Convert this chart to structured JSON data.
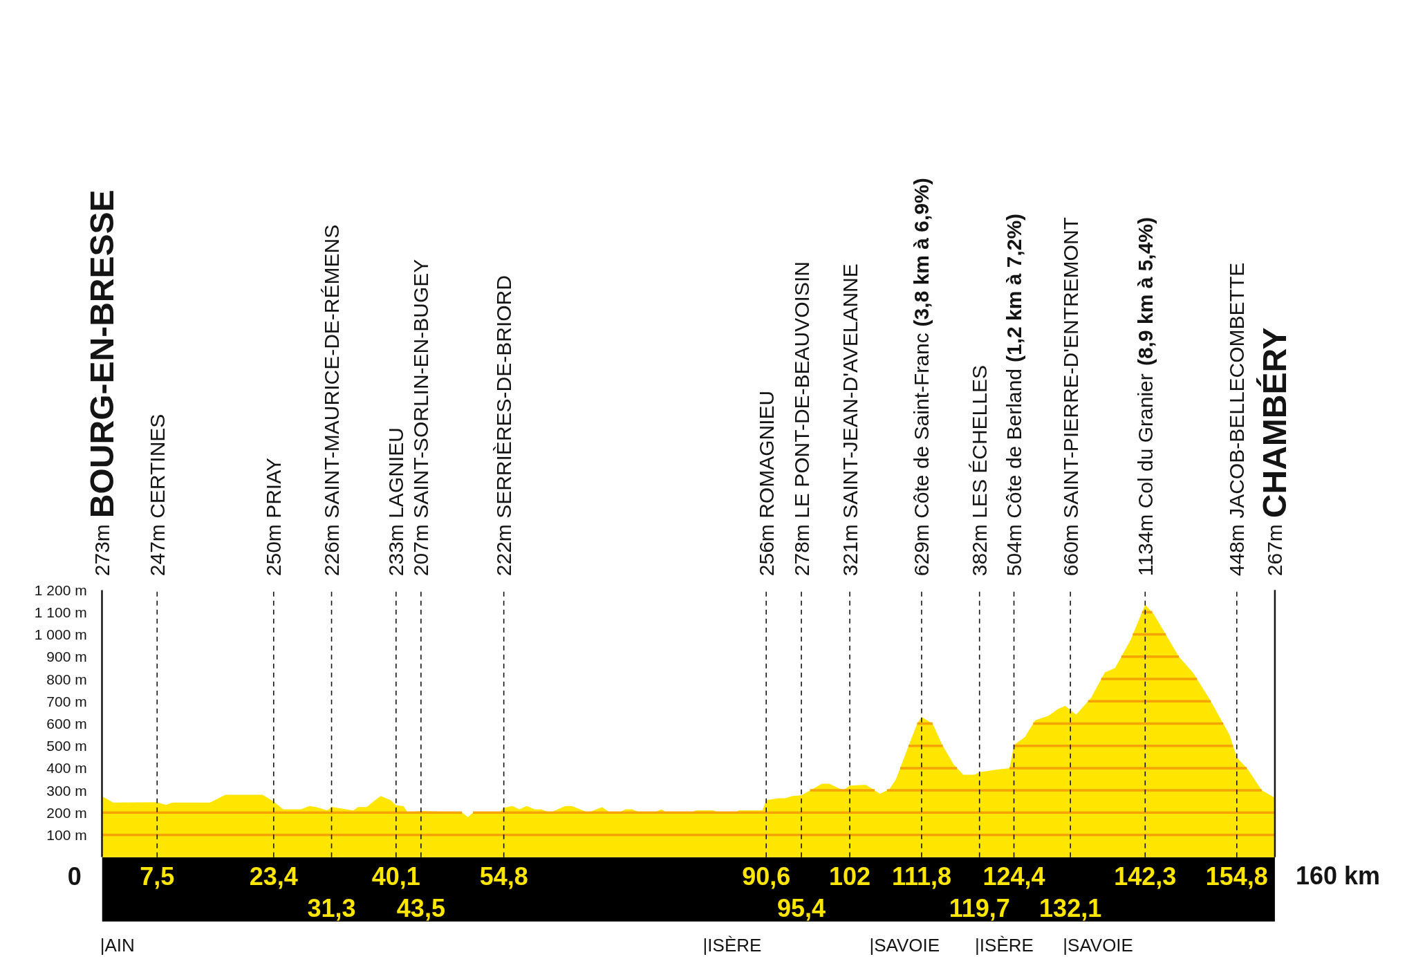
{
  "chart_data": {
    "type": "area",
    "color": "#ffe600",
    "x": [
      0,
      1.5,
      7.5,
      8.7,
      9.6,
      14.7,
      16.8,
      21.9,
      23.4,
      24.7,
      27.1,
      28.3,
      29.2,
      30.7,
      31.3,
      34.3,
      34.9,
      36.1,
      37,
      38,
      39.4,
      40.1,
      41.1,
      41.7,
      43.5,
      49.1,
      49.9,
      50.6,
      54.2,
      54.8,
      56,
      56.9,
      57.9,
      59,
      59.9,
      61.1,
      63.2,
      64.1,
      66.3,
      68.2,
      69.3,
      70.5,
      71.4,
      72.3,
      73.4,
      75.3,
      76.3,
      77.1,
      80.4,
      81,
      83.4,
      84.1,
      86.3,
      86.9,
      90.1,
      90.6,
      92.3,
      93.2,
      94.2,
      95.4,
      98.2,
      99.2,
      101.1,
      102,
      104.2,
      106.1,
      107.4,
      108.3,
      110.2,
      111.2,
      111.8,
      113.3,
      114.6,
      116.2,
      117.5,
      119,
      119.7,
      122.5,
      123.8,
      124.4,
      125.9,
      127.3,
      129.1,
      130.4,
      131.4,
      132.1,
      132.9,
      134.9,
      136.8,
      138.2,
      140.3,
      142.3,
      143.4,
      144.4,
      146.9,
      148.8,
      151,
      153.8,
      154.8,
      156.3,
      158.2,
      160
    ],
    "values": [
      273,
      245,
      247,
      235,
      245,
      245,
      280,
      280,
      250,
      215,
      215,
      230,
      225,
      210,
      226,
      210,
      225,
      225,
      250,
      275,
      255,
      233,
      230,
      200,
      207,
      200,
      180,
      200,
      200,
      222,
      230,
      215,
      230,
      215,
      215,
      200,
      230,
      230,
      200,
      225,
      200,
      200,
      215,
      215,
      200,
      200,
      215,
      200,
      200,
      210,
      210,
      200,
      200,
      210,
      210,
      256,
      265,
      265,
      275,
      278,
      330,
      330,
      300,
      321,
      325,
      285,
      305,
      350,
      515,
      600,
      629,
      600,
      505,
      415,
      370,
      370,
      382,
      395,
      400,
      504,
      540,
      615,
      635,
      665,
      680,
      660,
      640,
      715,
      830,
      850,
      975,
      1134,
      1095,
      1040,
      900,
      830,
      715,
      550,
      448,
      395,
      300,
      267
    ],
    "xlim": [
      0,
      160
    ],
    "xticks": [
      {
        "value": 7.5,
        "label": "7,5"
      },
      {
        "value": 23.4,
        "label": "23,4"
      },
      {
        "value": 40.1,
        "label": "40,1"
      },
      {
        "value": 54.8,
        "label": "54,8"
      },
      {
        "value": 90.6,
        "label": "90,6"
      },
      102,
      {
        "value": 111.8,
        "label": "111,8"
      },
      {
        "value": 124.4,
        "label": "124,4"
      },
      {
        "value": 142.3,
        "label": "142,3"
      },
      {
        "value": 154.8,
        "label": "154,8"
      }
    ],
    "x2lim": [
      0,
      160
    ],
    "x2ticks": [
      {
        "value": 31.3,
        "label": "31,3"
      },
      {
        "value": 43.5,
        "label": "43,5"
      },
      {
        "value": 95.4,
        "label": "95,4"
      },
      {
        "value": 119.7,
        "label": "119,7"
      },
      {
        "value": 132.1,
        "label": "132,1"
      }
    ],
    "ylim": [
      0,
      1200
    ],
    "yticks": [
      {
        "value": 100,
        "label": "100 m"
      },
      {
        "value": 200,
        "label": "200 m"
      },
      {
        "value": 300,
        "label": "300 m"
      },
      {
        "value": 400,
        "label": "400 m"
      },
      {
        "value": 500,
        "label": "500 m"
      },
      {
        "value": 600,
        "label": "600 m"
      },
      {
        "value": 700,
        "label": "700 m"
      },
      {
        "value": 800,
        "label": "800 m"
      },
      {
        "value": 900,
        "label": "900 m"
      },
      {
        "value": 1000,
        "label": "1 000 m"
      },
      {
        "value": 1100,
        "label": "1 100 m"
      },
      {
        "value": 1200,
        "label": "1 200 m"
      }
    ],
    "grid": "y",
    "ref_lines": [
      {
        "axis": "x",
        "value": 7.5,
        "label": "247m CERTINES",
        "line_style": "dashed"
      },
      {
        "axis": "x",
        "value": 23.4,
        "label": "250m PRIAY",
        "line_style": "dashed"
      },
      {
        "axis": "x",
        "value": 31.3,
        "label": "226m SAINT-MAURICE-DE-RÉMENS",
        "line_style": "dashed"
      },
      {
        "axis": "x",
        "value": 40.1,
        "label": "233m LAGNIEU",
        "line_style": "dashed"
      },
      {
        "axis": "x",
        "value": 43.5,
        "label": "207m SAINT-SORLIN-EN-BUGEY",
        "line_style": "dashed"
      },
      {
        "axis": "x",
        "value": 54.8,
        "label": "222m SERRIÈRES-DE-BRIORD",
        "line_style": "dashed"
      },
      {
        "axis": "x",
        "value": 90.6,
        "label": "256m ROMAGNIEU",
        "line_style": "dashed"
      },
      {
        "axis": "x",
        "value": 95.4,
        "label": "278m LE PONT-DE-BEAUVOISIN",
        "line_style": "dashed"
      },
      {
        "axis": "x",
        "value": 102,
        "label": "321m SAINT-JEAN-D'AVELANNE",
        "line_style": "dashed"
      },
      {
        "axis": "x",
        "value": 111.8,
        "label": "629m Côte de Saint-Franc (3,8 km à 6,9%)",
        "line_style": "dashed"
      },
      {
        "axis": "x",
        "value": 119.7,
        "label": "382m LES ÉCHELLES",
        "line_style": "dashed"
      },
      {
        "axis": "x",
        "value": 124.4,
        "label": "504m Côte de Berland (1,2 km à 7,2%)",
        "line_style": "dashed"
      },
      {
        "axis": "x",
        "value": 132.1,
        "label": "660m SAINT-PIERRE-D'ENTREMONT",
        "line_style": "dashed"
      },
      {
        "axis": "x",
        "value": 142.3,
        "label": "1134m Col du Granier (8,9 km à 5,4%)",
        "line_style": "dashed"
      },
      {
        "axis": "x",
        "value": 154.8,
        "label": "448m JACOB-BELLECOMBETTE",
        "line_style": "dashed"
      },
      {
        "axis": "x",
        "value": 160,
        "label": "267m CHAMBÉRY",
        "line_style": "solid"
      }
    ],
    "annotations": [
      "273m BOURG-EN-BRESSE",
      "0",
      "160 km",
      "|AIN",
      "|ISÈRE",
      "|SAVOIE",
      "|ISÈRE",
      "|SAVOIE"
    ]
  }
}
